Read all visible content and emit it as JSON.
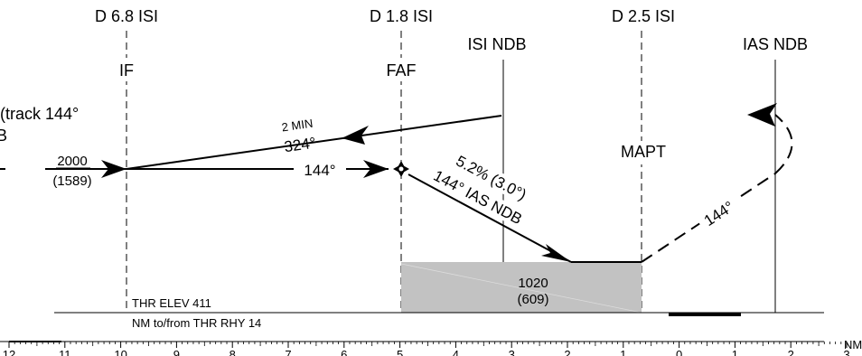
{
  "fixes": [
    {
      "distance": "D 6.8 ISI",
      "role": "IF"
    },
    {
      "distance": "D 1.8 ISI",
      "role": "FAF"
    },
    {
      "distance": "D 2.5 ISI",
      "role": "MAPT"
    }
  ],
  "beacons": [
    {
      "name": "ISI NDB"
    },
    {
      "name": "IAS NDB"
    }
  ],
  "inbound": {
    "note_line1": "(track 144°",
    "note_line2": "B",
    "altitude": "2000",
    "altitude_hat": "(1589)"
  },
  "holding": {
    "time": "2 MIN",
    "outbound_course": "324°",
    "inbound_course": "144°"
  },
  "final_approach": {
    "gradient": "5.2% (3.0°)",
    "course": "144° IAS NDB"
  },
  "missed_approach": {
    "course": "144°"
  },
  "obstacle": {
    "altitude": "1020",
    "height": "(609)"
  },
  "threshold": {
    "elevation": "THR ELEV 411",
    "distance_note": "NM to/from THR RHY 14"
  },
  "distance_scale": {
    "unit": "NM",
    "ticks": [
      "12",
      "11",
      "10",
      "9",
      "8",
      "7",
      "6",
      "5",
      "4",
      "3",
      "2",
      "1",
      "0",
      "1",
      "2",
      "3"
    ]
  }
}
